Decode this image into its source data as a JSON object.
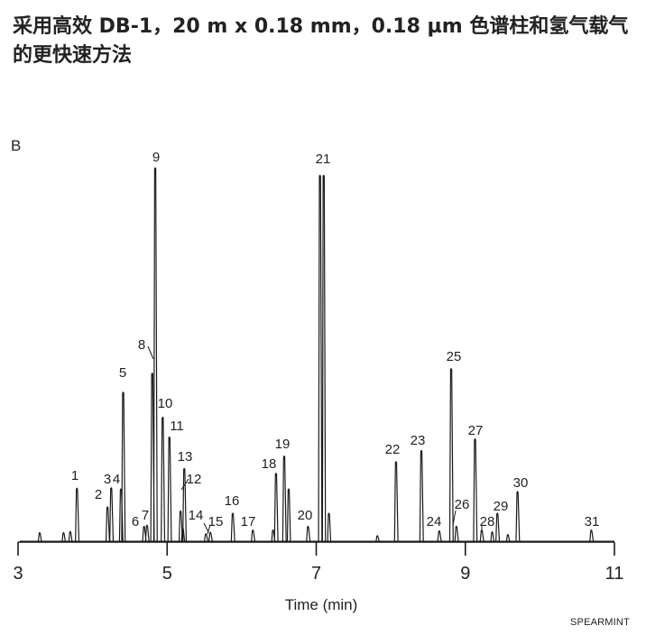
{
  "title": "采用高效 DB-1，20 m x 0.18 mm，0.18 µm 色谱柱和氢气载气的更快速方法",
  "panel_label": "B",
  "footer": "SPEARMINT",
  "chart_data": {
    "type": "line",
    "xlabel": "Time (min)",
    "ylabel": "",
    "xlim": [
      3,
      11
    ],
    "ylim": [
      0,
      100
    ],
    "x_ticks": [
      3,
      5,
      7,
      9,
      11
    ],
    "x_tick_labels": [
      "3",
      "5",
      "7",
      "9",
      "11"
    ],
    "grid": false,
    "line_color": "#1a1a1a",
    "peaks": [
      {
        "label": "1",
        "x": 3.79,
        "height": 14.2
      },
      {
        "label": "2",
        "x": 4.2,
        "height": 9.2
      },
      {
        "label": "3",
        "x": 4.25,
        "height": 14.3
      },
      {
        "label": "4",
        "x": 4.38,
        "height": 14.0
      },
      {
        "label": "5",
        "x": 4.41,
        "height": 39.9
      },
      {
        "label": "6",
        "x": 4.69,
        "height": 4.0
      },
      {
        "label": "7",
        "x": 4.73,
        "height": 4.3
      },
      {
        "label": "8",
        "x": 4.8,
        "height": 45.0
      },
      {
        "label": "9",
        "x": 4.84,
        "height": 100.0
      },
      {
        "label": "10",
        "x": 4.94,
        "height": 33.2
      },
      {
        "label": "11",
        "x": 5.03,
        "height": 27.9
      },
      {
        "label": "12",
        "x": 5.18,
        "height": 8.1
      },
      {
        "label": "13",
        "x": 5.23,
        "height": 19.5
      },
      {
        "label": "14",
        "x": 5.52,
        "height": 2.0
      },
      {
        "label": "15",
        "x": 5.58,
        "height": 2.4
      },
      {
        "label": "16",
        "x": 5.88,
        "height": 7.5
      },
      {
        "label": "17",
        "x": 6.15,
        "height": 3.0
      },
      {
        "label": "18",
        "x": 6.46,
        "height": 18.2
      },
      {
        "label": "19",
        "x": 6.57,
        "height": 22.8
      },
      {
        "label": "20",
        "x": 6.89,
        "height": 4.0
      },
      {
        "label": "21",
        "x": 7.05,
        "height": 98.0
      },
      {
        "label": "22",
        "x": 8.07,
        "height": 21.3
      },
      {
        "label": "23",
        "x": 8.41,
        "height": 24.3
      },
      {
        "label": "24",
        "x": 8.65,
        "height": 2.8
      },
      {
        "label": "25",
        "x": 8.81,
        "height": 46.2
      },
      {
        "label": "26",
        "x": 8.88,
        "height": 4.0
      },
      {
        "label": "27",
        "x": 9.13,
        "height": 27.4
      },
      {
        "label": "28",
        "x": 9.22,
        "height": 3.0
      },
      {
        "label": "29",
        "x": 9.43,
        "height": 7.5
      },
      {
        "label": "30",
        "x": 9.7,
        "height": 13.3
      },
      {
        "label": "31",
        "x": 10.69,
        "height": 3.0
      }
    ],
    "minor_peaks": [
      {
        "x": 3.29,
        "height": 2.3
      },
      {
        "x": 3.61,
        "height": 2.3
      },
      {
        "x": 3.7,
        "height": 2.6
      },
      {
        "x": 5.21,
        "height": 3.5
      },
      {
        "x": 6.42,
        "height": 3.0
      },
      {
        "x": 6.63,
        "height": 14.0
      },
      {
        "x": 7.1,
        "height": 98.0
      },
      {
        "x": 7.17,
        "height": 7.5
      },
      {
        "x": 7.82,
        "height": 1.5
      },
      {
        "x": 9.36,
        "height": 2.5
      },
      {
        "x": 9.57,
        "height": 1.8
      }
    ]
  }
}
